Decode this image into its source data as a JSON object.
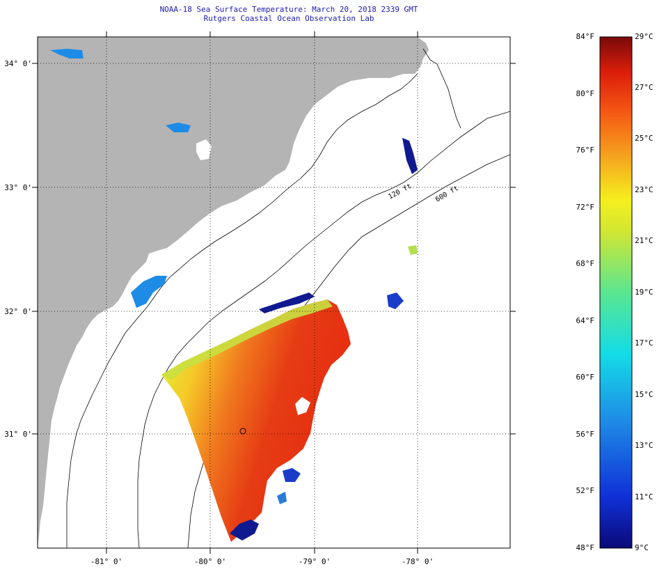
{
  "titles": {
    "line1": "NOAA-18 Sea Surface Temperature:  March 20, 2018 2339 GMT",
    "line2": "Rutgers Coastal Ocean Observation Lab"
  },
  "axes": {
    "lat_labels": [
      "34° 0'",
      "33° 0'",
      "32° 0'",
      "31° 0'"
    ],
    "lon_labels": [
      "-81° 0'",
      "-80° 0'",
      "-79° 0'",
      "-78° 0'"
    ]
  },
  "isobaths": {
    "label_120": "120 ft",
    "label_600": "600 ft"
  },
  "colorbar": {
    "fahrenheit_labels": [
      "84°F",
      "80°F",
      "76°F",
      "72°F",
      "68°F",
      "64°F",
      "60°F",
      "56°F",
      "52°F",
      "48°F"
    ],
    "celsius_labels": [
      "29°C",
      "27°C",
      "25°C",
      "23°C",
      "21°C",
      "19°C",
      "17°C",
      "15°C",
      "13°C",
      "11°C",
      "9°C"
    ]
  },
  "colors": {
    "land": "#b4b4b4",
    "title_text": "#1a1ab4",
    "warm": "#e62a10",
    "mid": "#f5a020",
    "cool": "#f0e020",
    "cold": "#101a90"
  }
}
